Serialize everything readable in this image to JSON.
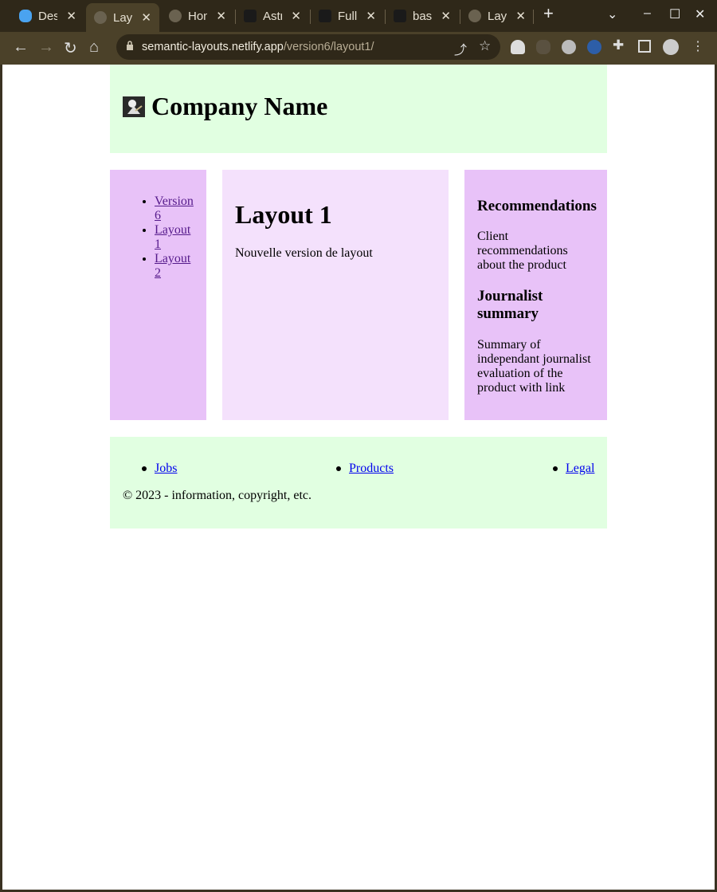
{
  "tabs": [
    {
      "title": "Des"
    },
    {
      "title": "Layo"
    },
    {
      "title": "Hon"
    },
    {
      "title": "Astr"
    },
    {
      "title": "Full"
    },
    {
      "title": "basi"
    },
    {
      "title": "Layo"
    }
  ],
  "address": {
    "host": "semantic-layouts.netlify.app",
    "path": "/version6/layout1/"
  },
  "colors": {
    "header_bg": "#e1ffe1",
    "nav_bg": "#e8c2f8",
    "main_bg": "#f4e1fc",
    "aside_bg": "#e8c2f8",
    "footer_bg": "#e1ffe1",
    "visited_link": "#551a8b",
    "link": "#0000ee"
  },
  "page": {
    "header": {
      "title": "Company Name"
    },
    "nav": {
      "items": [
        {
          "label": "Version 6"
        },
        {
          "label": "Layout 1"
        },
        {
          "label": "Layout 2"
        }
      ]
    },
    "main": {
      "heading": "Layout 1",
      "text": "Nouvelle version de layout"
    },
    "aside": {
      "sections": [
        {
          "heading": "Recommendations",
          "text": "Client recommendations about the product"
        },
        {
          "heading": "Journalist summary",
          "text": "Summary of independant journalist evaluation of the product with link"
        }
      ]
    },
    "footer": {
      "links": [
        {
          "label": "Jobs"
        },
        {
          "label": "Products"
        },
        {
          "label": "Legal"
        }
      ],
      "copyright": "© 2023 - information, copyright, etc."
    }
  }
}
